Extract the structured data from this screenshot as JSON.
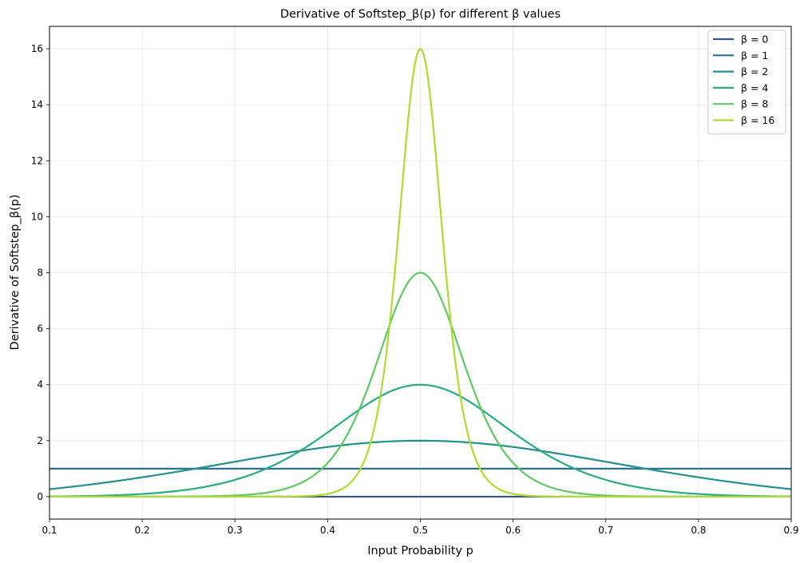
{
  "chart_data": {
    "type": "line",
    "title": "Derivative of Softstep_β(p) for different β values",
    "xlabel": "Input Probability p",
    "ylabel": "Derivative of Softstep_β(p)",
    "xlim": [
      0.1,
      0.9
    ],
    "ylim": [
      -0.8,
      16.8
    ],
    "xticks": [
      0.1,
      0.2,
      0.3,
      0.4,
      0.5,
      0.6,
      0.7,
      0.8,
      0.9
    ],
    "xtick_labels": [
      "0.1",
      "0.2",
      "0.3",
      "0.4",
      "0.5",
      "0.6",
      "0.7",
      "0.8",
      "0.9"
    ],
    "yticks": [
      0,
      2,
      4,
      6,
      8,
      10,
      12,
      14,
      16
    ],
    "ytick_labels": [
      "0",
      "2",
      "4",
      "6",
      "8",
      "10",
      "12",
      "14",
      "16"
    ],
    "grid": true,
    "legend_position": "top-right",
    "x": [
      0.1,
      0.15,
      0.2,
      0.25,
      0.3,
      0.35,
      0.4,
      0.42,
      0.44,
      0.46,
      0.48,
      0.5,
      0.52,
      0.54,
      0.56,
      0.58,
      0.6,
      0.65,
      0.7,
      0.75,
      0.8,
      0.85,
      0.9
    ],
    "series": [
      {
        "name": "β = 0",
        "beta": 0,
        "color": "#3b528b",
        "values": [
          0,
          0,
          0,
          0,
          0,
          0,
          0,
          0,
          0,
          0,
          0,
          0,
          0,
          0,
          0,
          0,
          0,
          0,
          0,
          0,
          0,
          0,
          0
        ]
      },
      {
        "name": "β = 1",
        "beta": 1,
        "color": "#2c728e",
        "values": [
          1,
          1,
          1,
          1,
          1,
          1,
          1,
          1,
          1,
          1,
          1,
          1,
          1,
          1,
          1,
          1,
          1,
          1,
          1,
          1,
          1,
          1,
          1
        ]
      },
      {
        "name": "β = 2",
        "beta": 2,
        "color": "#21918c",
        "values": [
          0.28,
          0.49,
          0.74,
          1.0,
          1.27,
          1.53,
          1.79,
          1.87,
          1.93,
          1.98,
          2.0,
          2.0,
          2.0,
          1.98,
          1.93,
          1.87,
          1.79,
          1.53,
          1.27,
          1.0,
          0.74,
          0.49,
          0.28
        ]
      },
      {
        "name": "β = 4",
        "beta": 4,
        "color": "#27ad81",
        "values": [
          0.04,
          0.12,
          0.27,
          0.56,
          1.08,
          1.92,
          3.0,
          3.39,
          3.71,
          3.91,
          3.99,
          4.0,
          3.99,
          3.91,
          3.71,
          3.39,
          3.0,
          1.92,
          1.08,
          0.56,
          0.27,
          0.12,
          0.04
        ]
      },
      {
        "name": "β = 8",
        "beta": 8,
        "color": "#5ec962",
        "values": [
          0.0,
          0.0,
          0.02,
          0.07,
          0.24,
          0.78,
          2.49,
          3.58,
          5.02,
          6.55,
          7.73,
          8.0,
          7.73,
          6.55,
          5.02,
          3.58,
          2.49,
          0.78,
          0.24,
          0.07,
          0.02,
          0.0,
          0.0
        ]
      },
      {
        "name": "β = 16",
        "beta": 16,
        "color": "#addc30",
        "values": [
          0.0,
          0.0,
          0.0,
          0.0,
          0.0,
          0.01,
          0.12,
          0.43,
          1.73,
          5.33,
          12.0,
          16.0,
          12.0,
          5.33,
          1.73,
          0.43,
          0.12,
          0.01,
          0.0,
          0.0,
          0.0,
          0.0,
          0.0
        ]
      }
    ]
  }
}
